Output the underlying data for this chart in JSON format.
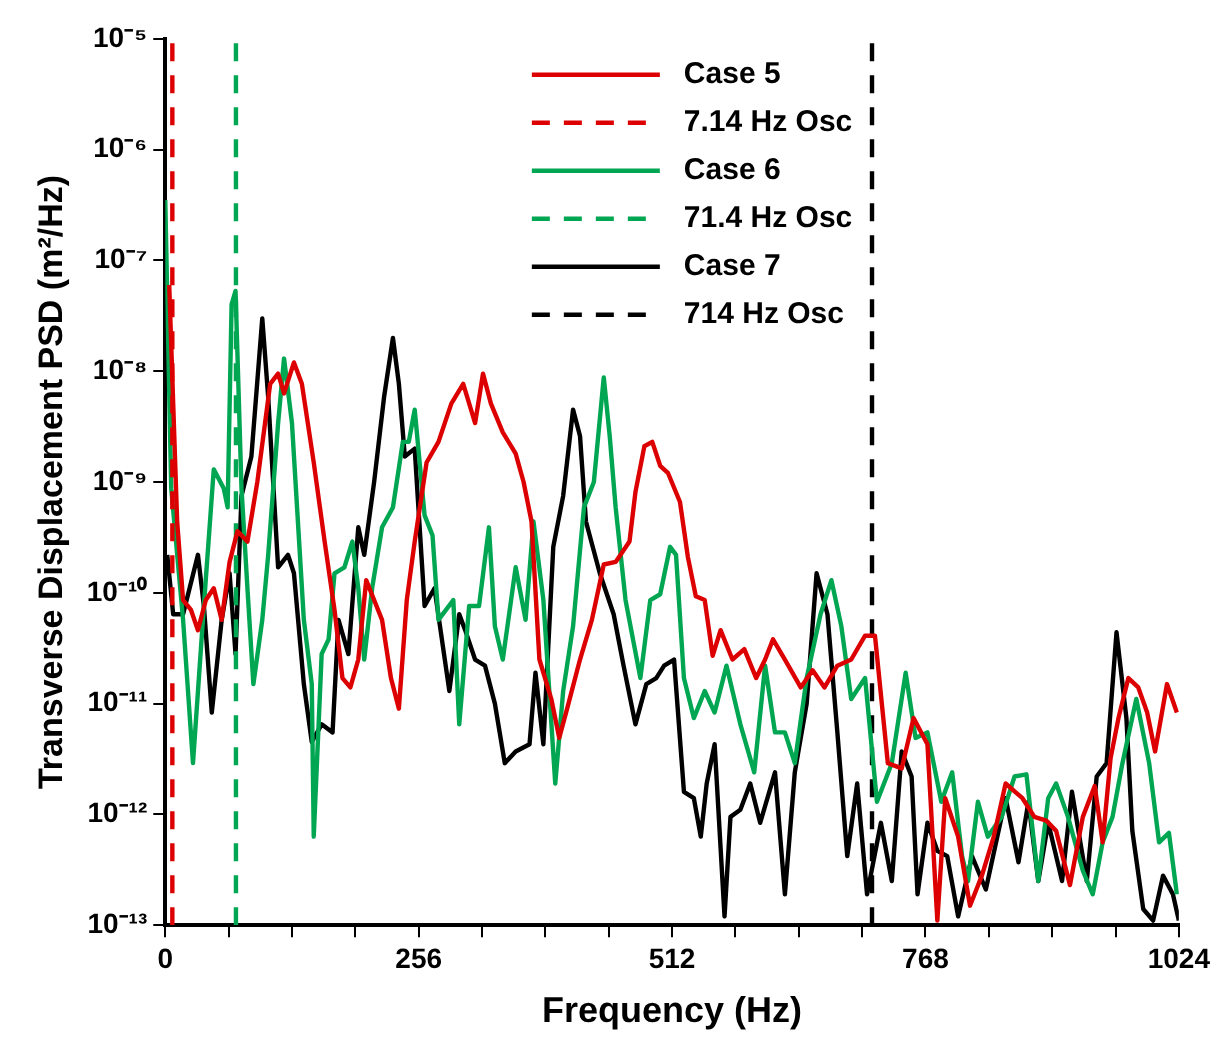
{
  "chart_data": {
    "type": "line",
    "xlabel": "Frequency (Hz)",
    "ylabel": "Transverse Displacement PSD (m²/Hz)",
    "log": "y",
    "grid": false,
    "legend": "top",
    "marker": "none",
    "xlim": [
      0,
      1024
    ],
    "xticks": [
      0,
      {
        "value": 64,
        "label": null
      },
      {
        "value": 128,
        "label": null
      },
      {
        "value": 192,
        "label": null
      },
      256,
      {
        "value": 320,
        "label": null
      },
      {
        "value": 384,
        "label": null
      },
      {
        "value": 448,
        "label": null
      },
      512,
      {
        "value": 576,
        "label": null
      },
      {
        "value": 640,
        "label": null
      },
      {
        "value": 704,
        "label": null
      },
      768,
      {
        "value": 832,
        "label": null
      },
      {
        "value": 896,
        "label": null
      },
      {
        "value": 960,
        "label": null
      },
      1024
    ],
    "ylim": [
      1e-13,
      1e-05
    ],
    "yticks": [
      {
        "value": 1e-13,
        "label": "10⁻¹³"
      },
      {
        "value": 1e-12,
        "label": "10⁻¹²"
      },
      {
        "value": 1e-11,
        "label": "10⁻¹¹"
      },
      {
        "value": 1e-10,
        "label": "10⁻¹⁰"
      },
      {
        "value": 1e-09,
        "label": "10⁻⁹"
      },
      {
        "value": 1e-08,
        "label": "10⁻⁸"
      },
      {
        "value": 1e-07,
        "label": "10⁻⁷"
      },
      {
        "value": 1e-06,
        "label": "10⁻⁶"
      },
      {
        "value": 1e-05,
        "label": "10⁻⁵"
      }
    ],
    "series": [
      {
        "name": "Case 5",
        "type": "line",
        "color": "#dd0000",
        "line_style": "solid",
        "x": [
          4,
          12,
          18,
          26,
          33,
          41,
          49,
          57,
          65,
          73,
          83,
          93,
          106,
          114,
          120,
          130,
          138,
          150,
          161,
          171,
          179,
          187,
          195,
          203,
          211,
          219,
          228,
          236,
          244,
          252,
          264,
          276,
          289,
          301,
          313,
          321,
          329,
          341,
          354,
          362,
          370,
          378,
          390,
          398,
          406,
          419,
          431,
          443,
          455,
          469,
          475,
          484,
          492,
          500,
          508,
          520,
          528,
          536,
          545,
          553,
          561,
          573,
          585,
          597,
          606,
          614,
          626,
          642,
          654,
          666,
          679,
          693,
          707,
          717,
          730,
          744,
          756,
          770,
          780,
          788,
          801,
          813,
          825,
          837,
          849,
          866,
          878,
          890,
          900,
          914,
          927,
          939,
          947,
          955,
          963,
          973,
          983,
          992,
          1000,
          1012,
          1022
        ],
        "values": [
          6e-08,
          4.4e-10,
          8.6e-11,
          7e-11,
          4.6e-11,
          8.6e-11,
          1.1e-10,
          5.7e-11,
          1.9e-10,
          3.6e-10,
          2.9e-10,
          1e-09,
          7.7e-09,
          9.5e-09,
          6.3e-09,
          1.2e-08,
          7.7e-09,
          1.5e-09,
          2.9e-10,
          7e-11,
          1.7e-11,
          1.4e-11,
          2.5e-11,
          1.3e-10,
          8.6e-11,
          5.7e-11,
          1.7e-11,
          9e-12,
          8.6e-11,
          2.9e-10,
          1.5e-09,
          2.3e-09,
          5.1e-09,
          7.7e-09,
          3.4e-09,
          9.5e-09,
          5.1e-09,
          2.8e-09,
          1.8e-09,
          1e-09,
          4.4e-10,
          2.5e-11,
          1.1e-11,
          4.9e-12,
          9e-12,
          2.5e-11,
          5.7e-11,
          1.8e-10,
          1.9e-10,
          2.9e-10,
          8.1e-10,
          2.1e-09,
          2.3e-09,
          1.4e-09,
          1.2e-09,
          6.6e-10,
          2.1e-10,
          9.3e-11,
          8.6e-11,
          2.7e-11,
          4.6e-11,
          2.5e-11,
          3.1e-11,
          1.7e-11,
          2.5e-11,
          3.8e-11,
          2.5e-11,
          1.4e-11,
          2e-11,
          1.4e-11,
          2.2e-11,
          2.5e-11,
          4.1e-11,
          4.1e-11,
          2.9e-12,
          2.6e-12,
          7.4e-12,
          4.3e-12,
          1.1e-13,
          1.4e-12,
          6.3e-13,
          1.5e-13,
          2.8e-13,
          6.3e-13,
          1.9e-12,
          1.4e-12,
          9.5e-13,
          8.8e-13,
          7.1e-13,
          2.3e-13,
          9.5e-13,
          1.8e-12,
          5.6e-13,
          3.2e-12,
          7.4e-12,
          1.7e-11,
          1.4e-11,
          8.3e-12,
          3.7e-12,
          1.5e-11,
          8.3e-12
        ]
      },
      {
        "name": "7.14 Hz Osc",
        "type": "line",
        "color": "#dd0000",
        "line_style": "dashed",
        "x": [
          7.14,
          7.14
        ],
        "values": [
          1e-13,
          1e-05
        ]
      },
      {
        "name": "Case 6",
        "type": "line",
        "color": "#00a651",
        "line_style": "solid",
        "x": [
          0,
          6,
          18,
          28,
          39,
          49,
          59,
          63,
          67,
          71,
          77,
          83,
          89,
          98,
          104,
          114,
          120,
          128,
          134,
          140,
          148,
          150,
          158,
          165,
          171,
          181,
          189,
          195,
          201,
          209,
          219,
          230,
          240,
          246,
          252,
          262,
          270,
          276,
          291,
          297,
          307,
          317,
          327,
          333,
          341,
          354,
          364,
          372,
          382,
          394,
          402,
          412,
          423,
          433,
          443,
          449,
          455,
          465,
          480,
          490,
          500,
          510,
          516,
          524,
          534,
          545,
          555,
          567,
          581,
          595,
          606,
          616,
          626,
          636,
          648,
          662,
          673,
          683,
          693,
          707,
          719,
          734,
          748,
          758,
          770,
          784,
          795,
          805,
          811,
          821,
          831,
          845,
          858,
          870,
          882,
          892,
          900,
          912,
          927,
          937,
          947,
          957,
          967,
          981,
          994,
          1004,
          1014,
          1022
        ],
        "values": [
          3.5e-07,
          8.8e-10,
          5.7e-11,
          2.9e-12,
          7.6e-11,
          1.3e-09,
          8.8e-10,
          5.9e-10,
          4e-08,
          5.3e-08,
          8.8e-10,
          1.1e-10,
          1.5e-11,
          5.7e-11,
          2.2e-10,
          3.4e-09,
          1.3e-08,
          3.4e-09,
          4.4e-10,
          5.7e-11,
          1.5e-11,
          6.3e-13,
          2.8e-11,
          3.8e-11,
          1.5e-10,
          1.7e-10,
          2.9e-10,
          1.1e-10,
          2.5e-11,
          1.1e-10,
          3.9e-10,
          5.9e-10,
          2.3e-09,
          2.3e-09,
          4.5e-09,
          5e-10,
          3.3e-10,
          5.7e-11,
          8.6e-11,
          6.5e-12,
          7.6e-11,
          7.6e-11,
          3.9e-10,
          5e-11,
          2.5e-11,
          1.7e-10,
          5.7e-11,
          4.4e-10,
          8.6e-11,
          1.9e-12,
          1.3e-11,
          5e-11,
          5.9e-10,
          1e-09,
          8.8e-09,
          2.6e-09,
          5.9e-10,
          8.6e-11,
          1.7e-11,
          8.6e-11,
          9.7e-11,
          2.6e-10,
          2.2e-10,
          1.7e-11,
          7.4e-12,
          1.3e-11,
          8.3e-12,
          2.2e-11,
          6.5e-12,
          2.4e-12,
          2.2e-11,
          5.5e-12,
          5.5e-12,
          2.9e-12,
          1.7e-11,
          6.4e-11,
          1.3e-10,
          5e-11,
          1.1e-11,
          1.7e-11,
          1.3e-12,
          2.9e-12,
          1.9e-11,
          4.9e-12,
          5.5e-12,
          1.3e-12,
          2.4e-12,
          4.2e-13,
          2.5e-13,
          1.3e-12,
          6.3e-13,
          9.5e-13,
          2.2e-12,
          2.3e-12,
          2.5e-13,
          1.4e-12,
          1.9e-12,
          9.5e-13,
          3.1e-13,
          1.9e-13,
          5.6e-13,
          9.5e-13,
          2.9e-12,
          1.1e-11,
          2.9e-12,
          5.6e-13,
          6.8e-13,
          1.9e-13
        ]
      },
      {
        "name": "71.4 Hz Osc",
        "type": "line",
        "color": "#00a651",
        "line_style": "dashed",
        "x": [
          71.4,
          71.4
        ],
        "values": [
          1e-13,
          1e-05
        ]
      },
      {
        "name": "Case 7",
        "type": "line",
        "color": "#000000",
        "line_style": "solid",
        "x": [
          2,
          8,
          18,
          33,
          39,
          47,
          57,
          65,
          71,
          77,
          87,
          98,
          104,
          114,
          124,
          130,
          140,
          148,
          158,
          169,
          175,
          185,
          195,
          201,
          211,
          221,
          230,
          236,
          242,
          252,
          262,
          272,
          287,
          297,
          303,
          313,
          323,
          333,
          343,
          354,
          368,
          374,
          382,
          392,
          402,
          412,
          419,
          425,
          439,
          453,
          463,
          475,
          486,
          496,
          504,
          514,
          524,
          534,
          541,
          547,
          555,
          565,
          571,
          581,
          591,
          601,
          616,
          626,
          636,
          648,
          658,
          669,
          679,
          689,
          699,
          709,
          723,
          734,
          744,
          754,
          760,
          770,
          780,
          790,
          801,
          815,
          829,
          849,
          862,
          872,
          882,
          892,
          906,
          916,
          931,
          941,
          951,
          961,
          971,
          977,
          988,
          998,
          1008,
          1018,
          1024
        ],
        "values": [
          2.2e-10,
          6.4e-11,
          6.4e-11,
          2.2e-10,
          7.6e-11,
          8.3e-12,
          5.7e-11,
          1.5e-10,
          2.8e-11,
          7.5e-10,
          1.7e-09,
          3e-08,
          5.8e-09,
          1.7e-10,
          2.2e-10,
          1.5e-10,
          1.5e-11,
          4.5e-12,
          6.5e-12,
          5.5e-12,
          5.7e-11,
          2.8e-11,
          3.9e-10,
          2.2e-10,
          1e-09,
          5.8e-09,
          2e-08,
          7.7e-09,
          1.7e-09,
          2e-09,
          7.6e-11,
          1.1e-10,
          1.3e-11,
          6.4e-11,
          4.6e-11,
          2.5e-11,
          2.2e-11,
          1e-11,
          2.9e-12,
          3.7e-12,
          4.3e-12,
          1.9e-11,
          4.3e-12,
          2.6e-10,
          7.5e-10,
          4.5e-09,
          2.6e-09,
          4.4e-10,
          1.5e-10,
          6.4e-11,
          2.2e-11,
          6.5e-12,
          1.5e-11,
          1.7e-11,
          2.2e-11,
          2.5e-11,
          1.6e-12,
          1.4e-12,
          6.3e-13,
          1.9e-12,
          4.3e-12,
          1.2e-13,
          9.5e-13,
          1.1e-12,
          1.9e-12,
          8.4e-13,
          2.4e-12,
          1.9e-13,
          2.4e-12,
          1e-11,
          1.5e-10,
          6.4e-11,
          5.5e-12,
          4.2e-13,
          1.9e-12,
          1.9e-13,
          8.4e-13,
          2.5e-13,
          3.7e-12,
          2.2e-12,
          1.9e-13,
          8.4e-13,
          4.7e-13,
          4.2e-13,
          1.2e-13,
          4.2e-13,
          2.1e-13,
          1.4e-12,
          3.7e-13,
          1.3e-12,
          2.5e-13,
          8.4e-13,
          2.5e-13,
          1.6e-12,
          2.5e-13,
          2.2e-12,
          2.9e-12,
          4.4e-11,
          7.4e-12,
          7.1e-13,
          1.4e-13,
          1.1e-13,
          2.8e-13,
          1.9e-13,
          1.1e-13
        ]
      },
      {
        "name": "714 Hz Osc",
        "type": "line",
        "color": "#000000",
        "line_style": "dashed",
        "x": [
          714,
          714
        ],
        "values": [
          1e-13,
          1e-05
        ]
      }
    ]
  }
}
